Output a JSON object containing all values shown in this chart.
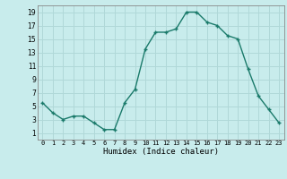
{
  "x": [
    0,
    1,
    2,
    3,
    4,
    5,
    6,
    7,
    8,
    9,
    10,
    11,
    12,
    13,
    14,
    15,
    16,
    17,
    18,
    19,
    20,
    21,
    22,
    23
  ],
  "y": [
    5.5,
    4.0,
    3.0,
    3.5,
    3.5,
    2.5,
    1.5,
    1.5,
    5.5,
    7.5,
    13.5,
    16.0,
    16.0,
    16.5,
    19.0,
    19.0,
    17.5,
    17.0,
    15.5,
    15.0,
    10.5,
    6.5,
    4.5,
    2.5
  ],
  "xlabel": "Humidex (Indice chaleur)",
  "line_color": "#1a7a6a",
  "marker": "+",
  "bg_color": "#c8ecec",
  "grid_color": "#b0d8d8",
  "xlim": [
    -0.5,
    23.5
  ],
  "ylim": [
    0,
    20
  ],
  "xticks": [
    0,
    1,
    2,
    3,
    4,
    5,
    6,
    7,
    8,
    9,
    10,
    11,
    12,
    13,
    14,
    15,
    16,
    17,
    18,
    19,
    20,
    21,
    22,
    23
  ],
  "yticks": [
    1,
    3,
    5,
    7,
    9,
    11,
    13,
    15,
    17,
    19
  ]
}
